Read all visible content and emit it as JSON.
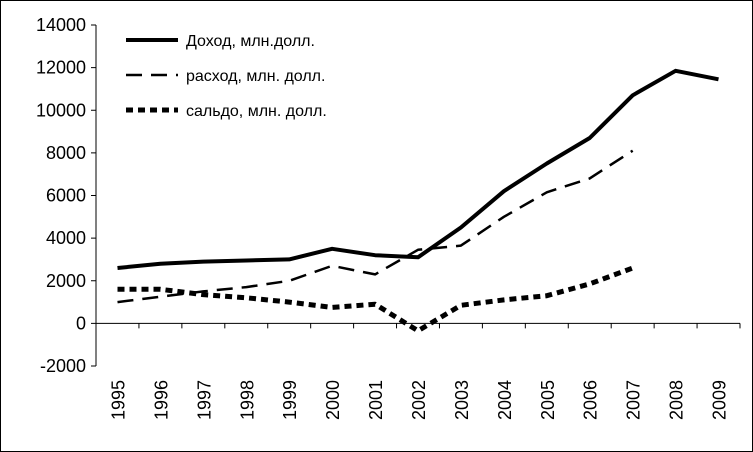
{
  "chart_data": {
    "type": "line",
    "title": "",
    "xlabel": "",
    "ylabel": "",
    "categories": [
      "1995",
      "1996",
      "1997",
      "1998",
      "1999",
      "2000",
      "2001",
      "2002",
      "2003",
      "2004",
      "2005",
      "2006",
      "2007",
      "2008",
      "2009"
    ],
    "ylim": [
      -2000,
      14000
    ],
    "yticks": [
      "-2000",
      "0",
      "2000",
      "4000",
      "6000",
      "8000",
      "10000",
      "12000",
      "14000"
    ],
    "yticks_values": [
      -2000,
      0,
      2000,
      4000,
      6000,
      8000,
      10000,
      12000,
      14000
    ],
    "grid": "none",
    "legend_position": "top-left",
    "series": [
      {
        "name": "Доход, млн.долл.",
        "style": "solid",
        "color": "#000000",
        "values": [
          2600,
          2800,
          2900,
          2950,
          3000,
          3500,
          3200,
          3100,
          4500,
          6200,
          7500,
          8700,
          10700,
          11850,
          11450
        ]
      },
      {
        "name": "расход, млн. долл.",
        "style": "long-dash",
        "color": "#000000",
        "values": [
          1000,
          1250,
          1500,
          1700,
          2000,
          2700,
          2300,
          3450,
          3650,
          5000,
          6150,
          6800,
          8100,
          null,
          null
        ]
      },
      {
        "name": "сальдо, млн. долл.",
        "style": "short-dash",
        "color": "#000000",
        "values": [
          1600,
          1600,
          1350,
          1200,
          1000,
          750,
          900,
          -350,
          850,
          1100,
          1300,
          1850,
          2600,
          null,
          null
        ]
      }
    ]
  }
}
